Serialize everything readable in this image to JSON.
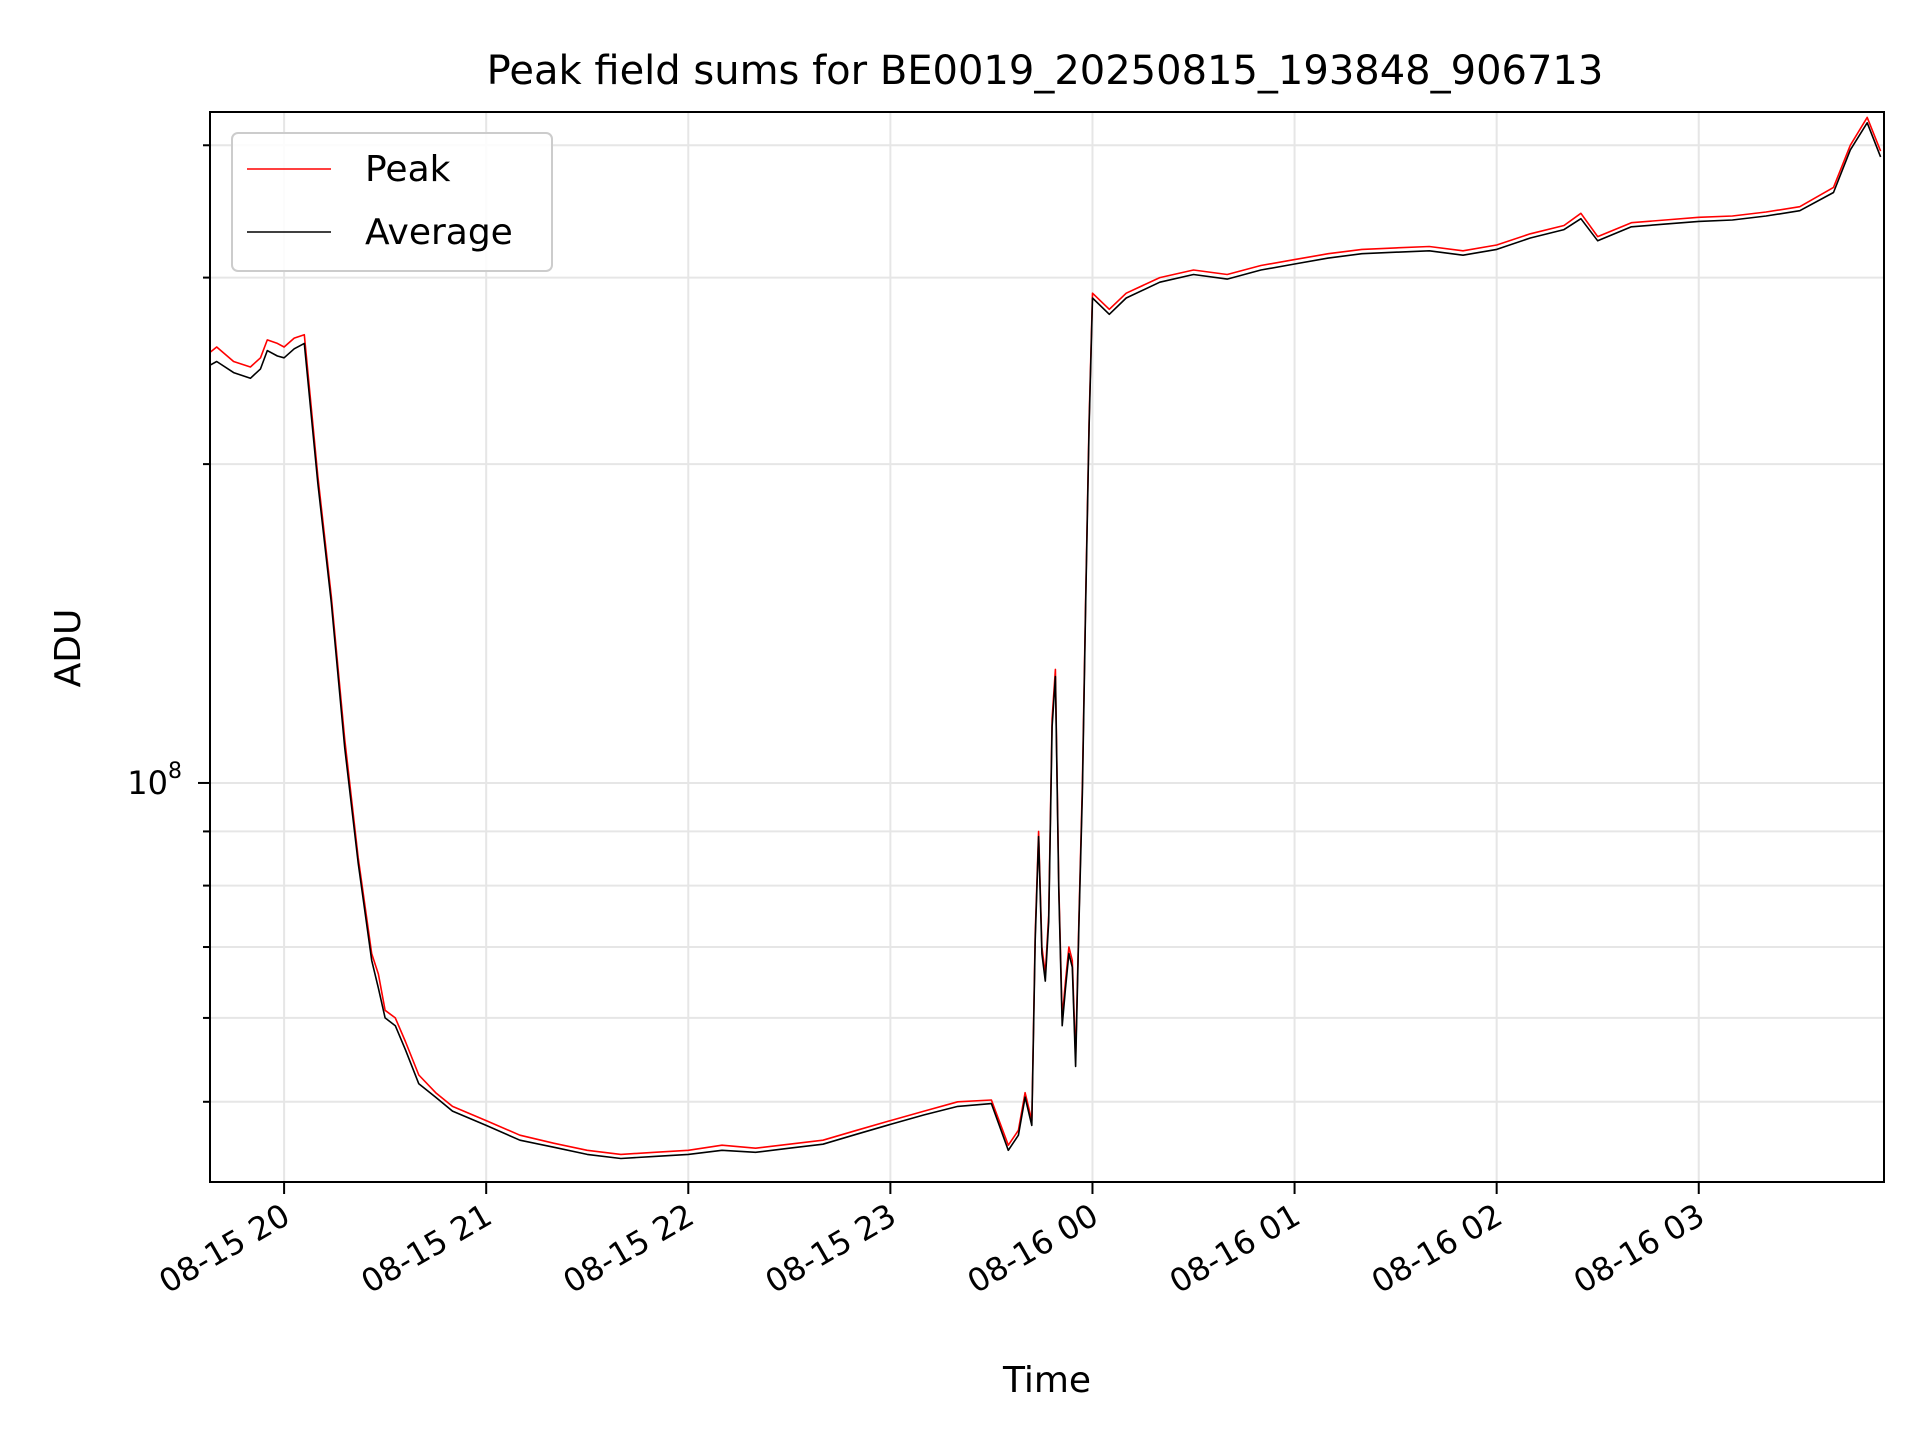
{
  "chart_data": {
    "type": "line",
    "title": "Peak field sums for BE0019_20250815_193848_906713",
    "xlabel": "Time",
    "ylabel": "ADU",
    "y_scale": "log",
    "grid": true,
    "legend": "top-left",
    "x_ticks": [
      "08-15 20",
      "08-15 21",
      "08-15 22",
      "08-15 23",
      "08-16 00",
      "08-16 01",
      "08-16 02",
      "08-16 03"
    ],
    "y_tick_label": {
      "base": "10",
      "exponent": "8",
      "value": 100000000
    },
    "xlim": [
      "2025-08-15 19:38",
      "2025-08-16 03:55"
    ],
    "ylim": [
      42000000,
      430000000
    ],
    "series": [
      {
        "name": "Peak",
        "color": "#ff0000",
        "points": [
          [
            "2025-08-15 19:38",
            255000000
          ],
          [
            "2025-08-15 19:40",
            258000000
          ],
          [
            "2025-08-15 19:45",
            250000000
          ],
          [
            "2025-08-15 19:50",
            247000000
          ],
          [
            "2025-08-15 19:53",
            252000000
          ],
          [
            "2025-08-15 19:55",
            262000000
          ],
          [
            "2025-08-15 19:58",
            260000000
          ],
          [
            "2025-08-15 20:00",
            258000000
          ],
          [
            "2025-08-15 20:03",
            263000000
          ],
          [
            "2025-08-15 20:06",
            265000000
          ],
          [
            "2025-08-15 20:10",
            195000000
          ],
          [
            "2025-08-15 20:14",
            150000000
          ],
          [
            "2025-08-15 20:18",
            110000000
          ],
          [
            "2025-08-15 20:22",
            85000000
          ],
          [
            "2025-08-15 20:26",
            69000000
          ],
          [
            "2025-08-15 20:28",
            66000000
          ],
          [
            "2025-08-15 20:30",
            61000000
          ],
          [
            "2025-08-15 20:33",
            60000000
          ],
          [
            "2025-08-15 20:36",
            57000000
          ],
          [
            "2025-08-15 20:40",
            53000000
          ],
          [
            "2025-08-15 20:45",
            51000000
          ],
          [
            "2025-08-15 20:50",
            49500000
          ],
          [
            "2025-08-15 21:00",
            48000000
          ],
          [
            "2025-08-15 21:10",
            46500000
          ],
          [
            "2025-08-15 21:20",
            45700000
          ],
          [
            "2025-08-15 21:30",
            45000000
          ],
          [
            "2025-08-15 21:40",
            44600000
          ],
          [
            "2025-08-15 21:50",
            44800000
          ],
          [
            "2025-08-15 22:00",
            45000000
          ],
          [
            "2025-08-15 22:10",
            45500000
          ],
          [
            "2025-08-15 22:20",
            45200000
          ],
          [
            "2025-08-15 22:30",
            45600000
          ],
          [
            "2025-08-15 22:40",
            46000000
          ],
          [
            "2025-08-15 22:50",
            47000000
          ],
          [
            "2025-08-15 23:00",
            48000000
          ],
          [
            "2025-08-15 23:10",
            49000000
          ],
          [
            "2025-08-15 23:20",
            50000000
          ],
          [
            "2025-08-15 23:30",
            50200000
          ],
          [
            "2025-08-15 23:35",
            45500000
          ],
          [
            "2025-08-15 23:38",
            47000000
          ],
          [
            "2025-08-15 23:40",
            51000000
          ],
          [
            "2025-08-15 23:42",
            48000000
          ],
          [
            "2025-08-15 23:43",
            72000000
          ],
          [
            "2025-08-15 23:44",
            90000000
          ],
          [
            "2025-08-15 23:45",
            70000000
          ],
          [
            "2025-08-15 23:46",
            66000000
          ],
          [
            "2025-08-15 23:47",
            75000000
          ],
          [
            "2025-08-15 23:48",
            115000000
          ],
          [
            "2025-08-15 23:49",
            128000000
          ],
          [
            "2025-08-15 23:50",
            80000000
          ],
          [
            "2025-08-15 23:51",
            60000000
          ],
          [
            "2025-08-15 23:52",
            65000000
          ],
          [
            "2025-08-15 23:53",
            70000000
          ],
          [
            "2025-08-15 23:54",
            68000000
          ],
          [
            "2025-08-15 23:55",
            55000000
          ],
          [
            "2025-08-15 23:56",
            75000000
          ],
          [
            "2025-08-15 23:57",
            100000000
          ],
          [
            "2025-08-15 23:58",
            150000000
          ],
          [
            "2025-08-15 23:59",
            220000000
          ],
          [
            "2025-08-16 00:00",
            290000000
          ],
          [
            "2025-08-16 00:05",
            280000000
          ],
          [
            "2025-08-16 00:10",
            290000000
          ],
          [
            "2025-08-16 00:20",
            300000000
          ],
          [
            "2025-08-16 00:30",
            305000000
          ],
          [
            "2025-08-16 00:40",
            302000000
          ],
          [
            "2025-08-16 00:50",
            308000000
          ],
          [
            "2025-08-16 01:00",
            312000000
          ],
          [
            "2025-08-16 01:10",
            316000000
          ],
          [
            "2025-08-16 01:20",
            319000000
          ],
          [
            "2025-08-16 01:30",
            320000000
          ],
          [
            "2025-08-16 01:40",
            321000000
          ],
          [
            "2025-08-16 01:50",
            318000000
          ],
          [
            "2025-08-16 02:00",
            322000000
          ],
          [
            "2025-08-16 02:10",
            330000000
          ],
          [
            "2025-08-16 02:20",
            336000000
          ],
          [
            "2025-08-16 02:25",
            345000000
          ],
          [
            "2025-08-16 02:30",
            328000000
          ],
          [
            "2025-08-16 02:40",
            338000000
          ],
          [
            "2025-08-16 02:50",
            340000000
          ],
          [
            "2025-08-16 03:00",
            342000000
          ],
          [
            "2025-08-16 03:10",
            343000000
          ],
          [
            "2025-08-16 03:20",
            346000000
          ],
          [
            "2025-08-16 03:30",
            350000000
          ],
          [
            "2025-08-16 03:40",
            365000000
          ],
          [
            "2025-08-16 03:45",
            400000000
          ],
          [
            "2025-08-16 03:50",
            425000000
          ],
          [
            "2025-08-16 03:54",
            395000000
          ]
        ]
      },
      {
        "name": "Average",
        "color": "#000000",
        "points": [
          [
            "2025-08-15 19:38",
            248000000
          ],
          [
            "2025-08-15 19:40",
            250000000
          ],
          [
            "2025-08-15 19:45",
            244000000
          ],
          [
            "2025-08-15 19:50",
            241000000
          ],
          [
            "2025-08-15 19:53",
            246000000
          ],
          [
            "2025-08-15 19:55",
            256000000
          ],
          [
            "2025-08-15 19:58",
            253000000
          ],
          [
            "2025-08-15 20:00",
            252000000
          ],
          [
            "2025-08-15 20:03",
            257000000
          ],
          [
            "2025-08-15 20:06",
            260000000
          ],
          [
            "2025-08-15 20:10",
            192000000
          ],
          [
            "2025-08-15 20:14",
            148000000
          ],
          [
            "2025-08-15 20:18",
            108000000
          ],
          [
            "2025-08-15 20:22",
            84000000
          ],
          [
            "2025-08-15 20:26",
            68000000
          ],
          [
            "2025-08-15 20:28",
            64000000
          ],
          [
            "2025-08-15 20:30",
            60000000
          ],
          [
            "2025-08-15 20:33",
            59000000
          ],
          [
            "2025-08-15 20:36",
            56000000
          ],
          [
            "2025-08-15 20:40",
            52000000
          ],
          [
            "2025-08-15 20:45",
            50500000
          ],
          [
            "2025-08-15 20:50",
            49000000
          ],
          [
            "2025-08-15 21:00",
            47500000
          ],
          [
            "2025-08-15 21:10",
            46000000
          ],
          [
            "2025-08-15 21:20",
            45300000
          ],
          [
            "2025-08-15 21:30",
            44600000
          ],
          [
            "2025-08-15 21:40",
            44200000
          ],
          [
            "2025-08-15 21:50",
            44400000
          ],
          [
            "2025-08-15 22:00",
            44600000
          ],
          [
            "2025-08-15 22:10",
            45000000
          ],
          [
            "2025-08-15 22:20",
            44800000
          ],
          [
            "2025-08-15 22:30",
            45200000
          ],
          [
            "2025-08-15 22:40",
            45600000
          ],
          [
            "2025-08-15 22:50",
            46600000
          ],
          [
            "2025-08-15 23:00",
            47600000
          ],
          [
            "2025-08-15 23:10",
            48600000
          ],
          [
            "2025-08-15 23:20",
            49500000
          ],
          [
            "2025-08-15 23:30",
            49800000
          ],
          [
            "2025-08-15 23:35",
            45000000
          ],
          [
            "2025-08-15 23:38",
            46500000
          ],
          [
            "2025-08-15 23:40",
            50500000
          ],
          [
            "2025-08-15 23:42",
            47500000
          ],
          [
            "2025-08-15 23:43",
            71000000
          ],
          [
            "2025-08-15 23:44",
            89000000
          ],
          [
            "2025-08-15 23:45",
            69000000
          ],
          [
            "2025-08-15 23:46",
            65000000
          ],
          [
            "2025-08-15 23:47",
            74000000
          ],
          [
            "2025-08-15 23:48",
            113000000
          ],
          [
            "2025-08-15 23:49",
            126000000
          ],
          [
            "2025-08-15 23:50",
            79000000
          ],
          [
            "2025-08-15 23:51",
            59000000
          ],
          [
            "2025-08-15 23:52",
            64000000
          ],
          [
            "2025-08-15 23:53",
            69000000
          ],
          [
            "2025-08-15 23:54",
            67000000
          ],
          [
            "2025-08-15 23:55",
            54000000
          ],
          [
            "2025-08-15 23:56",
            74000000
          ],
          [
            "2025-08-15 23:57",
            98000000
          ],
          [
            "2025-08-15 23:58",
            148000000
          ],
          [
            "2025-08-15 23:59",
            217000000
          ],
          [
            "2025-08-16 00:00",
            287000000
          ],
          [
            "2025-08-16 00:05",
            277000000
          ],
          [
            "2025-08-16 00:10",
            287000000
          ],
          [
            "2025-08-16 00:20",
            297000000
          ],
          [
            "2025-08-16 00:30",
            302000000
          ],
          [
            "2025-08-16 00:40",
            299000000
          ],
          [
            "2025-08-16 00:50",
            305000000
          ],
          [
            "2025-08-16 01:00",
            309000000
          ],
          [
            "2025-08-16 01:10",
            313000000
          ],
          [
            "2025-08-16 01:20",
            316000000
          ],
          [
            "2025-08-16 01:30",
            317000000
          ],
          [
            "2025-08-16 01:40",
            318000000
          ],
          [
            "2025-08-16 01:50",
            315000000
          ],
          [
            "2025-08-16 02:00",
            319000000
          ],
          [
            "2025-08-16 02:10",
            327000000
          ],
          [
            "2025-08-16 02:20",
            333000000
          ],
          [
            "2025-08-16 02:25",
            341000000
          ],
          [
            "2025-08-16 02:30",
            325000000
          ],
          [
            "2025-08-16 02:40",
            335000000
          ],
          [
            "2025-08-16 02:50",
            337000000
          ],
          [
            "2025-08-16 03:00",
            339000000
          ],
          [
            "2025-08-16 03:10",
            340000000
          ],
          [
            "2025-08-16 03:20",
            343000000
          ],
          [
            "2025-08-16 03:30",
            347000000
          ],
          [
            "2025-08-16 03:40",
            361000000
          ],
          [
            "2025-08-16 03:45",
            396000000
          ],
          [
            "2025-08-16 03:50",
            420000000
          ],
          [
            "2025-08-16 03:54",
            390000000
          ]
        ]
      }
    ]
  }
}
